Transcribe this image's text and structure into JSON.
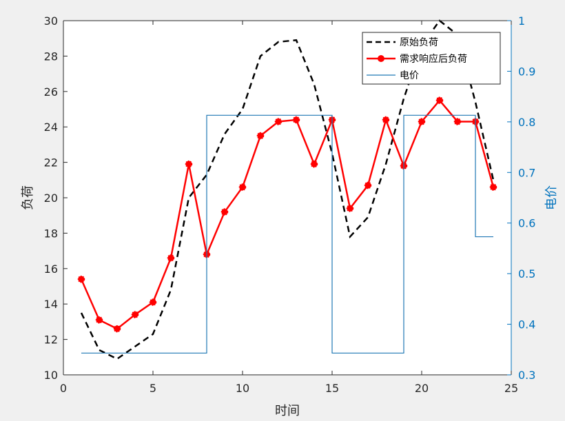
{
  "chart_data": {
    "type": "line",
    "title": "",
    "xlabel": "时间",
    "ylabel_left": "负荷",
    "ylabel_right": "电价",
    "xlim": [
      0,
      25
    ],
    "ylim_left": [
      10,
      30
    ],
    "ylim_right": [
      0.3,
      1
    ],
    "xticks": [
      "0",
      "5",
      "10",
      "15",
      "20",
      "25"
    ],
    "yticks_left": [
      "10",
      "12",
      "14",
      "16",
      "18",
      "20",
      "22",
      "24",
      "26",
      "28",
      "30"
    ],
    "yticks_right": [
      "0.3",
      "0.4",
      "0.5",
      "0.6",
      "0.7",
      "0.8",
      "0.9",
      "1"
    ],
    "grid": false,
    "legend_position": "top-right",
    "x": [
      1,
      2,
      3,
      4,
      5,
      6,
      7,
      8,
      9,
      10,
      11,
      12,
      13,
      14,
      15,
      16,
      17,
      18,
      19,
      20,
      21,
      22,
      23,
      24
    ],
    "series": [
      {
        "name": "原始负荷",
        "axis": "left",
        "style": "dashed",
        "color": "#000000",
        "values": [
          13.5,
          11.4,
          10.9,
          11.6,
          12.3,
          14.8,
          20.0,
          21.3,
          23.6,
          25.0,
          28.0,
          28.8,
          28.9,
          26.4,
          22.5,
          17.8,
          18.9,
          21.9,
          25.6,
          28.6,
          30.0,
          29.2,
          25.4,
          21.0
        ]
      },
      {
        "name": "需求响应后负荷",
        "axis": "left",
        "style": "solid-marker",
        "color": "#ff0000",
        "values": [
          15.4,
          13.1,
          12.6,
          13.4,
          14.1,
          16.6,
          21.9,
          16.8,
          19.2,
          20.6,
          23.5,
          24.3,
          24.4,
          21.9,
          24.4,
          19.4,
          20.7,
          24.4,
          21.8,
          24.3,
          25.5,
          24.3,
          24.3,
          20.6
        ]
      },
      {
        "name": "电价",
        "axis": "right",
        "style": "step",
        "color": "#1f77b4",
        "values": [
          0.343,
          0.343,
          0.343,
          0.343,
          0.343,
          0.343,
          0.343,
          0.813,
          0.813,
          0.813,
          0.813,
          0.813,
          0.813,
          0.813,
          0.343,
          0.343,
          0.343,
          0.343,
          0.813,
          0.813,
          0.813,
          0.813,
          0.573,
          0.573
        ]
      }
    ]
  }
}
